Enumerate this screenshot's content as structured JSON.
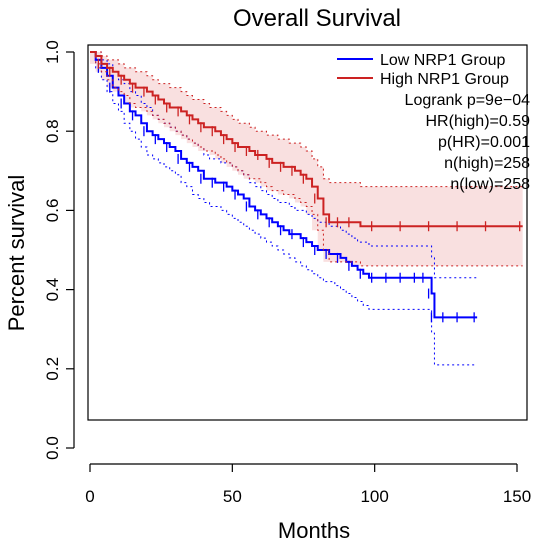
{
  "chart_data": {
    "type": "line",
    "title": "Overall Survival",
    "xlabel": "Months",
    "ylabel": "Percent survival",
    "xlim": [
      0,
      150
    ],
    "ylim": [
      0,
      1.0
    ],
    "x_ticks": [
      "0",
      "50",
      "100",
      "150"
    ],
    "y_ticks": [
      "0.0",
      "0.2",
      "0.4",
      "0.6",
      "0.8",
      "1.0"
    ],
    "grid": false,
    "legend_position": "top-right",
    "series": [
      {
        "name": "Low NRP1 Group",
        "color": "#0000ff",
        "x": [
          0,
          2,
          4,
          6,
          8,
          10,
          12,
          14,
          16,
          18,
          20,
          22,
          24,
          26,
          28,
          30,
          32,
          34,
          36,
          38,
          40,
          42,
          44,
          46,
          48,
          50,
          52,
          54,
          56,
          58,
          60,
          62,
          64,
          66,
          68,
          70,
          72,
          74,
          76,
          78,
          80,
          82,
          84,
          86,
          88,
          90,
          92,
          94,
          96,
          98,
          100,
          105,
          110,
          115,
          118,
          120,
          121,
          125,
          130,
          136
        ],
        "y": [
          1.0,
          0.98,
          0.96,
          0.94,
          0.91,
          0.89,
          0.87,
          0.85,
          0.84,
          0.82,
          0.8,
          0.79,
          0.78,
          0.77,
          0.76,
          0.75,
          0.73,
          0.72,
          0.71,
          0.7,
          0.68,
          0.68,
          0.67,
          0.67,
          0.66,
          0.65,
          0.64,
          0.63,
          0.61,
          0.6,
          0.59,
          0.58,
          0.57,
          0.56,
          0.55,
          0.54,
          0.54,
          0.53,
          0.52,
          0.51,
          0.5,
          0.5,
          0.49,
          0.49,
          0.48,
          0.47,
          0.46,
          0.45,
          0.44,
          0.43,
          0.43,
          0.43,
          0.43,
          0.43,
          0.43,
          0.39,
          0.33,
          0.33,
          0.33,
          0.33
        ],
        "ci_upper": [
          1.0,
          1.0,
          0.98,
          0.97,
          0.95,
          0.93,
          0.92,
          0.9,
          0.89,
          0.87,
          0.86,
          0.84,
          0.83,
          0.82,
          0.81,
          0.8,
          0.79,
          0.78,
          0.77,
          0.76,
          0.74,
          0.73,
          0.73,
          0.72,
          0.72,
          0.71,
          0.7,
          0.69,
          0.67,
          0.66,
          0.65,
          0.64,
          0.63,
          0.62,
          0.62,
          0.61,
          0.6,
          0.6,
          0.59,
          0.58,
          0.57,
          0.57,
          0.56,
          0.56,
          0.55,
          0.54,
          0.53,
          0.52,
          0.52,
          0.51,
          0.51,
          0.51,
          0.51,
          0.51,
          0.51,
          0.48,
          0.43,
          0.43,
          0.43,
          0.43
        ],
        "ci_lower": [
          1.0,
          0.96,
          0.93,
          0.9,
          0.87,
          0.85,
          0.82,
          0.8,
          0.78,
          0.76,
          0.74,
          0.73,
          0.72,
          0.71,
          0.7,
          0.69,
          0.67,
          0.66,
          0.64,
          0.63,
          0.62,
          0.61,
          0.61,
          0.6,
          0.59,
          0.58,
          0.57,
          0.56,
          0.55,
          0.54,
          0.53,
          0.52,
          0.51,
          0.5,
          0.49,
          0.48,
          0.47,
          0.46,
          0.45,
          0.44,
          0.43,
          0.42,
          0.42,
          0.41,
          0.4,
          0.39,
          0.38,
          0.37,
          0.36,
          0.35,
          0.35,
          0.35,
          0.35,
          0.35,
          0.35,
          0.29,
          0.21,
          0.21,
          0.21,
          0.21
        ]
      },
      {
        "name": "High NRP1 Group",
        "color": "#cc2222",
        "x": [
          0,
          2,
          4,
          6,
          8,
          10,
          12,
          14,
          16,
          18,
          20,
          22,
          24,
          26,
          28,
          30,
          32,
          34,
          36,
          38,
          40,
          42,
          44,
          46,
          48,
          50,
          52,
          54,
          56,
          58,
          60,
          62,
          64,
          66,
          68,
          70,
          72,
          74,
          76,
          78,
          80,
          82,
          84,
          86,
          88,
          90,
          92,
          95,
          100,
          110,
          120,
          130,
          140,
          152
        ],
        "y": [
          1.0,
          0.99,
          0.97,
          0.96,
          0.95,
          0.94,
          0.93,
          0.92,
          0.91,
          0.91,
          0.9,
          0.89,
          0.88,
          0.87,
          0.86,
          0.86,
          0.85,
          0.84,
          0.83,
          0.82,
          0.81,
          0.81,
          0.8,
          0.79,
          0.78,
          0.77,
          0.76,
          0.76,
          0.75,
          0.74,
          0.74,
          0.73,
          0.72,
          0.72,
          0.71,
          0.71,
          0.7,
          0.69,
          0.68,
          0.66,
          0.63,
          0.59,
          0.57,
          0.57,
          0.57,
          0.57,
          0.57,
          0.56,
          0.56,
          0.56,
          0.56,
          0.56,
          0.56,
          0.56
        ],
        "ci_upper": [
          1.0,
          1.0,
          0.99,
          0.98,
          0.98,
          0.97,
          0.96,
          0.96,
          0.95,
          0.95,
          0.94,
          0.93,
          0.92,
          0.92,
          0.91,
          0.91,
          0.9,
          0.89,
          0.88,
          0.88,
          0.87,
          0.86,
          0.86,
          0.85,
          0.84,
          0.83,
          0.82,
          0.82,
          0.81,
          0.8,
          0.8,
          0.79,
          0.79,
          0.78,
          0.78,
          0.77,
          0.77,
          0.76,
          0.75,
          0.73,
          0.71,
          0.68,
          0.67,
          0.67,
          0.67,
          0.67,
          0.67,
          0.66,
          0.66,
          0.66,
          0.66,
          0.66,
          0.66,
          0.66
        ],
        "ci_lower": [
          1.0,
          0.97,
          0.95,
          0.93,
          0.91,
          0.9,
          0.89,
          0.87,
          0.86,
          0.86,
          0.85,
          0.84,
          0.83,
          0.82,
          0.81,
          0.8,
          0.79,
          0.78,
          0.77,
          0.76,
          0.75,
          0.75,
          0.74,
          0.73,
          0.72,
          0.71,
          0.7,
          0.69,
          0.68,
          0.68,
          0.67,
          0.66,
          0.65,
          0.65,
          0.64,
          0.64,
          0.63,
          0.62,
          0.61,
          0.59,
          0.55,
          0.5,
          0.47,
          0.47,
          0.47,
          0.47,
          0.47,
          0.46,
          0.46,
          0.46,
          0.46,
          0.46,
          0.46,
          0.46
        ]
      }
    ],
    "annotations": [
      "Logrank p=9e−04",
      "HR(high)=0.59",
      "p(HR)=0.001",
      "n(high)=258",
      "n(low)=258"
    ]
  }
}
